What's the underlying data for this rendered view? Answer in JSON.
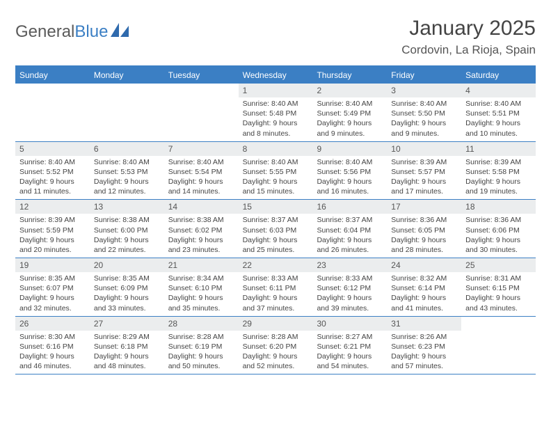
{
  "brand": {
    "name1": "General",
    "name2": "Blue"
  },
  "title": "January 2025",
  "location": "Cordovin, La Rioja, Spain",
  "header_bg": "#3b7fc4",
  "weekdays": [
    "Sunday",
    "Monday",
    "Tuesday",
    "Wednesday",
    "Thursday",
    "Friday",
    "Saturday"
  ],
  "weeks": [
    [
      {
        "empty": true
      },
      {
        "empty": true
      },
      {
        "empty": true
      },
      {
        "day": "1",
        "sunrise": "Sunrise: 8:40 AM",
        "sunset": "Sunset: 5:48 PM",
        "daylight": "Daylight: 9 hours and 8 minutes."
      },
      {
        "day": "2",
        "sunrise": "Sunrise: 8:40 AM",
        "sunset": "Sunset: 5:49 PM",
        "daylight": "Daylight: 9 hours and 9 minutes."
      },
      {
        "day": "3",
        "sunrise": "Sunrise: 8:40 AM",
        "sunset": "Sunset: 5:50 PM",
        "daylight": "Daylight: 9 hours and 9 minutes."
      },
      {
        "day": "4",
        "sunrise": "Sunrise: 8:40 AM",
        "sunset": "Sunset: 5:51 PM",
        "daylight": "Daylight: 9 hours and 10 minutes."
      }
    ],
    [
      {
        "day": "5",
        "sunrise": "Sunrise: 8:40 AM",
        "sunset": "Sunset: 5:52 PM",
        "daylight": "Daylight: 9 hours and 11 minutes."
      },
      {
        "day": "6",
        "sunrise": "Sunrise: 8:40 AM",
        "sunset": "Sunset: 5:53 PM",
        "daylight": "Daylight: 9 hours and 12 minutes."
      },
      {
        "day": "7",
        "sunrise": "Sunrise: 8:40 AM",
        "sunset": "Sunset: 5:54 PM",
        "daylight": "Daylight: 9 hours and 14 minutes."
      },
      {
        "day": "8",
        "sunrise": "Sunrise: 8:40 AM",
        "sunset": "Sunset: 5:55 PM",
        "daylight": "Daylight: 9 hours and 15 minutes."
      },
      {
        "day": "9",
        "sunrise": "Sunrise: 8:40 AM",
        "sunset": "Sunset: 5:56 PM",
        "daylight": "Daylight: 9 hours and 16 minutes."
      },
      {
        "day": "10",
        "sunrise": "Sunrise: 8:39 AM",
        "sunset": "Sunset: 5:57 PM",
        "daylight": "Daylight: 9 hours and 17 minutes."
      },
      {
        "day": "11",
        "sunrise": "Sunrise: 8:39 AM",
        "sunset": "Sunset: 5:58 PM",
        "daylight": "Daylight: 9 hours and 19 minutes."
      }
    ],
    [
      {
        "day": "12",
        "sunrise": "Sunrise: 8:39 AM",
        "sunset": "Sunset: 5:59 PM",
        "daylight": "Daylight: 9 hours and 20 minutes."
      },
      {
        "day": "13",
        "sunrise": "Sunrise: 8:38 AM",
        "sunset": "Sunset: 6:00 PM",
        "daylight": "Daylight: 9 hours and 22 minutes."
      },
      {
        "day": "14",
        "sunrise": "Sunrise: 8:38 AM",
        "sunset": "Sunset: 6:02 PM",
        "daylight": "Daylight: 9 hours and 23 minutes."
      },
      {
        "day": "15",
        "sunrise": "Sunrise: 8:37 AM",
        "sunset": "Sunset: 6:03 PM",
        "daylight": "Daylight: 9 hours and 25 minutes."
      },
      {
        "day": "16",
        "sunrise": "Sunrise: 8:37 AM",
        "sunset": "Sunset: 6:04 PM",
        "daylight": "Daylight: 9 hours and 26 minutes."
      },
      {
        "day": "17",
        "sunrise": "Sunrise: 8:36 AM",
        "sunset": "Sunset: 6:05 PM",
        "daylight": "Daylight: 9 hours and 28 minutes."
      },
      {
        "day": "18",
        "sunrise": "Sunrise: 8:36 AM",
        "sunset": "Sunset: 6:06 PM",
        "daylight": "Daylight: 9 hours and 30 minutes."
      }
    ],
    [
      {
        "day": "19",
        "sunrise": "Sunrise: 8:35 AM",
        "sunset": "Sunset: 6:07 PM",
        "daylight": "Daylight: 9 hours and 32 minutes."
      },
      {
        "day": "20",
        "sunrise": "Sunrise: 8:35 AM",
        "sunset": "Sunset: 6:09 PM",
        "daylight": "Daylight: 9 hours and 33 minutes."
      },
      {
        "day": "21",
        "sunrise": "Sunrise: 8:34 AM",
        "sunset": "Sunset: 6:10 PM",
        "daylight": "Daylight: 9 hours and 35 minutes."
      },
      {
        "day": "22",
        "sunrise": "Sunrise: 8:33 AM",
        "sunset": "Sunset: 6:11 PM",
        "daylight": "Daylight: 9 hours and 37 minutes."
      },
      {
        "day": "23",
        "sunrise": "Sunrise: 8:33 AM",
        "sunset": "Sunset: 6:12 PM",
        "daylight": "Daylight: 9 hours and 39 minutes."
      },
      {
        "day": "24",
        "sunrise": "Sunrise: 8:32 AM",
        "sunset": "Sunset: 6:14 PM",
        "daylight": "Daylight: 9 hours and 41 minutes."
      },
      {
        "day": "25",
        "sunrise": "Sunrise: 8:31 AM",
        "sunset": "Sunset: 6:15 PM",
        "daylight": "Daylight: 9 hours and 43 minutes."
      }
    ],
    [
      {
        "day": "26",
        "sunrise": "Sunrise: 8:30 AM",
        "sunset": "Sunset: 6:16 PM",
        "daylight": "Daylight: 9 hours and 46 minutes."
      },
      {
        "day": "27",
        "sunrise": "Sunrise: 8:29 AM",
        "sunset": "Sunset: 6:18 PM",
        "daylight": "Daylight: 9 hours and 48 minutes."
      },
      {
        "day": "28",
        "sunrise": "Sunrise: 8:28 AM",
        "sunset": "Sunset: 6:19 PM",
        "daylight": "Daylight: 9 hours and 50 minutes."
      },
      {
        "day": "29",
        "sunrise": "Sunrise: 8:28 AM",
        "sunset": "Sunset: 6:20 PM",
        "daylight": "Daylight: 9 hours and 52 minutes."
      },
      {
        "day": "30",
        "sunrise": "Sunrise: 8:27 AM",
        "sunset": "Sunset: 6:21 PM",
        "daylight": "Daylight: 9 hours and 54 minutes."
      },
      {
        "day": "31",
        "sunrise": "Sunrise: 8:26 AM",
        "sunset": "Sunset: 6:23 PM",
        "daylight": "Daylight: 9 hours and 57 minutes."
      },
      {
        "empty": true
      }
    ]
  ]
}
